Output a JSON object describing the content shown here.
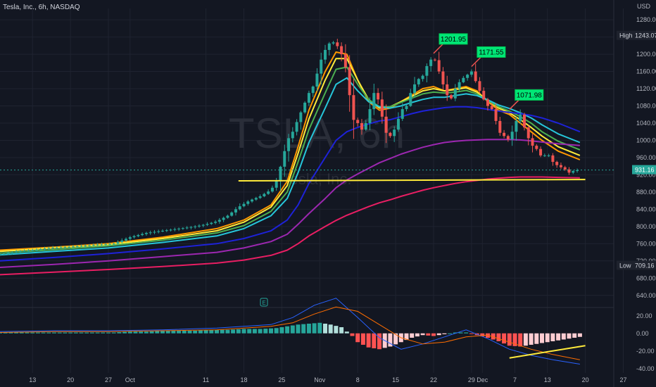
{
  "header": {
    "symbol_title": "Tesla, Inc., 6h, NASDAQ",
    "currency": "USD"
  },
  "watermark": {
    "ticker": "TSLA, 6h",
    "name": "Tesla, Inc."
  },
  "colors": {
    "bg": "#131722",
    "grid": "#1f2330",
    "up": "#26a69a",
    "down": "#ef5350",
    "ema_orange": "#ff9800",
    "ema_yellow": "#ffeb3b",
    "ema_green": "#4caf50",
    "ema_cyan": "#26c6da",
    "ema_blue": "#1e22d8",
    "ema_purple": "#9c27b0",
    "ema_pink": "#e91e63",
    "support": "#ffeb3b",
    "callout": "#00e676",
    "macd_line": "#2962ff",
    "signal_line": "#ff6d00"
  },
  "price_axis": {
    "ticks": [
      "1280.00",
      "1240.00",
      "1200.00",
      "1160.00",
      "1120.00",
      "1080.00",
      "1040.00",
      "1000.00",
      "960.00",
      "920.00",
      "880.00",
      "840.00",
      "800.00",
      "760.00",
      "720.00",
      "680.00",
      "640.00"
    ],
    "high_label": "High",
    "high_value": "1243.07",
    "low_label": "Low",
    "low_value": "709.16",
    "last_value": "931.16"
  },
  "macd_axis": {
    "ticks": [
      "20.00",
      "0.00",
      "-20.00",
      "-40.00"
    ]
  },
  "time_axis": {
    "labels": [
      {
        "text": "13",
        "t": 6
      },
      {
        "text": "20",
        "t": 13
      },
      {
        "text": "27",
        "t": 20
      },
      {
        "text": "Oct",
        "t": 24
      },
      {
        "text": "11",
        "t": 38
      },
      {
        "text": "18",
        "t": 45
      },
      {
        "text": "25",
        "t": 52
      },
      {
        "text": "Nov",
        "t": 59
      },
      {
        "text": "8",
        "t": 66
      },
      {
        "text": "15",
        "t": 73
      },
      {
        "text": "22",
        "t": 80
      },
      {
        "text": "29",
        "t": 87
      },
      {
        "text": "Dec",
        "t": 89
      },
      {
        "text": "7",
        "t": 95
      },
      {
        "text": "13",
        "t": 101
      },
      {
        "text": "20",
        "t": 108
      },
      {
        "text": "27",
        "t": 115
      }
    ]
  },
  "annotations": [
    {
      "text": "1201.95",
      "t": 80,
      "price": 1201.95
    },
    {
      "text": "1171.55",
      "t": 87,
      "price": 1171.55
    },
    {
      "text": "1071.98",
      "t": 94,
      "price": 1071.98
    }
  ],
  "chart_data": {
    "type": "line",
    "title": "Tesla, Inc., 6h, NASDAQ",
    "x_unit": "days from Sep 7",
    "ylim": [
      620,
      1290
    ],
    "close_series": {
      "t": [
        0,
        3,
        6,
        9,
        12,
        15,
        18,
        21,
        24,
        27,
        30,
        33,
        36,
        38,
        40,
        42,
        44,
        46,
        48,
        50,
        51,
        52,
        53,
        54,
        55,
        56,
        57,
        58,
        59,
        60,
        61,
        62,
        63,
        64,
        65,
        66,
        67,
        68,
        69,
        70,
        71,
        72,
        73,
        74,
        75,
        76,
        77,
        78,
        79,
        80,
        81,
        82,
        83,
        84,
        85,
        86,
        87,
        88,
        89,
        90,
        91,
        92,
        93,
        94,
        95,
        96,
        97,
        98,
        99,
        100,
        101,
        102,
        103,
        104,
        105,
        106,
        107
      ],
      "price": [
        735,
        742,
        745,
        750,
        752,
        755,
        758,
        760,
        775,
        785,
        790,
        795,
        800,
        805,
        812,
        825,
        845,
        860,
        870,
        885,
        905,
        950,
        1000,
        1020,
        1050,
        1080,
        1110,
        1130,
        1180,
        1210,
        1230,
        1225,
        1200,
        1160,
        1050,
        1040,
        1020,
        1060,
        1110,
        1090,
        1020,
        1010,
        1030,
        1070,
        1080,
        1120,
        1140,
        1150,
        1180,
        1195,
        1160,
        1120,
        1090,
        1120,
        1140,
        1150,
        1160,
        1130,
        1100,
        1080,
        1070,
        1020,
        1010,
        1000,
        1040,
        1060,
        1020,
        990,
        980,
        960,
        970,
        950,
        940,
        935,
        925,
        930,
        931.16
      ]
    },
    "moving_averages": [
      {
        "color": "#ff9800",
        "t": [
          0,
          10,
          20,
          30,
          40,
          45,
          50,
          53,
          55,
          57,
          60,
          62,
          64,
          66,
          68,
          70,
          72,
          74,
          76,
          78,
          80,
          82,
          84,
          86,
          88,
          90,
          92,
          94,
          96,
          98,
          100,
          103,
          107
        ],
        "price": [
          745,
          752,
          760,
          775,
          795,
          815,
          850,
          905,
          985,
          1070,
          1160,
          1205,
          1200,
          1140,
          1090,
          1070,
          1075,
          1090,
          1105,
          1120,
          1125,
          1115,
          1120,
          1125,
          1115,
          1090,
          1070,
          1060,
          1040,
          1020,
          1000,
          975,
          955
        ]
      },
      {
        "color": "#ffeb3b",
        "t": [
          0,
          10,
          20,
          30,
          40,
          45,
          50,
          53,
          55,
          57,
          60,
          62,
          64,
          66,
          68,
          70,
          72,
          74,
          76,
          78,
          80,
          82,
          84,
          86,
          88,
          90,
          92,
          94,
          96,
          98,
          100,
          103,
          107
        ],
        "price": [
          742,
          750,
          758,
          772,
          790,
          810,
          845,
          895,
          970,
          1050,
          1140,
          1190,
          1190,
          1140,
          1095,
          1075,
          1078,
          1090,
          1102,
          1115,
          1120,
          1115,
          1118,
          1122,
          1112,
          1092,
          1075,
          1064,
          1048,
          1030,
          1010,
          985,
          965
        ]
      },
      {
        "color": "#4caf50",
        "t": [
          0,
          10,
          20,
          30,
          40,
          45,
          50,
          53,
          55,
          57,
          60,
          62,
          64,
          66,
          68,
          70,
          72,
          74,
          76,
          78,
          80,
          82,
          84,
          86,
          88,
          90,
          92,
          94,
          96,
          98,
          100,
          103,
          107
        ],
        "price": [
          738,
          746,
          755,
          768,
          785,
          802,
          835,
          880,
          950,
          1025,
          1110,
          1165,
          1170,
          1130,
          1095,
          1078,
          1078,
          1088,
          1098,
          1108,
          1112,
          1110,
          1112,
          1116,
          1108,
          1092,
          1078,
          1068,
          1055,
          1040,
          1020,
          998,
          978
        ]
      },
      {
        "color": "#26c6da",
        "t": [
          0,
          10,
          20,
          30,
          40,
          45,
          50,
          53,
          55,
          57,
          60,
          62,
          64,
          66,
          68,
          70,
          72,
          74,
          76,
          78,
          80,
          82,
          84,
          86,
          88,
          90,
          92,
          94,
          96,
          98,
          100,
          103,
          107
        ],
        "price": [
          734,
          742,
          750,
          763,
          778,
          795,
          825,
          865,
          925,
          995,
          1075,
          1130,
          1145,
          1115,
          1090,
          1078,
          1075,
          1080,
          1088,
          1095,
          1100,
          1100,
          1104,
          1108,
          1104,
          1094,
          1082,
          1074,
          1064,
          1052,
          1036,
          1015,
          995
        ]
      },
      {
        "color": "#1e22d8",
        "t": [
          0,
          10,
          20,
          30,
          40,
          45,
          50,
          53,
          55,
          57,
          60,
          62,
          64,
          66,
          68,
          70,
          72,
          74,
          76,
          78,
          80,
          82,
          84,
          86,
          88,
          90,
          92,
          94,
          96,
          98,
          100,
          103,
          107
        ],
        "price": [
          720,
          728,
          737,
          748,
          760,
          772,
          790,
          815,
          850,
          900,
          960,
          1000,
          1020,
          1030,
          1038,
          1045,
          1048,
          1055,
          1062,
          1068,
          1072,
          1076,
          1078,
          1078,
          1076,
          1072,
          1068,
          1065,
          1062,
          1058,
          1052,
          1040,
          1020
        ]
      },
      {
        "color": "#9c27b0",
        "t": [
          0,
          10,
          20,
          30,
          40,
          45,
          50,
          53,
          55,
          57,
          60,
          62,
          64,
          66,
          68,
          70,
          72,
          74,
          76,
          78,
          80,
          82,
          84,
          86,
          88,
          90,
          92,
          94,
          96,
          98,
          100,
          103,
          107
        ],
        "price": [
          705,
          712,
          720,
          730,
          740,
          750,
          765,
          782,
          805,
          830,
          865,
          890,
          908,
          922,
          935,
          948,
          958,
          968,
          976,
          984,
          990,
          995,
          998,
          1000,
          1001,
          1002,
          1002,
          1002,
          1001,
          999,
          996,
          992,
          988
        ]
      },
      {
        "color": "#e91e63",
        "t": [
          0,
          10,
          20,
          30,
          40,
          45,
          50,
          53,
          55,
          57,
          60,
          62,
          64,
          66,
          68,
          70,
          72,
          74,
          76,
          78,
          80,
          82,
          84,
          86,
          88,
          90,
          92,
          94,
          96,
          98,
          100,
          103,
          107
        ],
        "price": [
          688,
          694,
          700,
          707,
          715,
          722,
          733,
          745,
          760,
          778,
          800,
          814,
          826,
          836,
          846,
          855,
          862,
          870,
          877,
          884,
          890,
          895,
          900,
          904,
          907,
          910,
          912,
          914,
          915,
          915,
          915,
          914,
          913
        ]
      }
    ],
    "support_line": {
      "t": [
        44,
        108
      ],
      "price": [
        906,
        909
      ]
    },
    "macd": {
      "ylim": [
        -45,
        27
      ],
      "histogram_t": [
        0,
        3,
        6,
        9,
        12,
        15,
        18,
        21,
        24,
        27,
        30,
        33,
        36,
        39,
        42,
        45,
        48,
        51,
        53,
        55,
        57,
        59,
        61,
        63,
        65,
        66,
        68,
        70,
        72,
        74,
        76,
        78,
        80,
        82,
        84,
        86,
        88,
        90,
        92,
        94,
        96,
        98,
        100,
        102,
        104,
        106,
        107
      ],
      "histogram": [
        1,
        1,
        1,
        1,
        1,
        1,
        1,
        1,
        2,
        2,
        3,
        3,
        3,
        4,
        4,
        5,
        5,
        6,
        8,
        10,
        11,
        12,
        10,
        7,
        -3,
        -10,
        -16,
        -18,
        -15,
        -10,
        -5,
        -2,
        -3,
        -1,
        1,
        1,
        -2,
        -5,
        -9,
        -14,
        -15,
        -13,
        -11,
        -9,
        -7,
        -5,
        -4
      ],
      "macd_t": [
        0,
        10,
        20,
        30,
        40,
        45,
        50,
        54,
        58,
        62,
        66,
        70,
        74,
        78,
        82,
        86,
        90,
        94,
        98,
        102,
        107
      ],
      "macd_line": [
        2,
        3,
        3,
        4,
        6,
        8,
        10,
        18,
        32,
        40,
        18,
        -5,
        -18,
        -12,
        -4,
        4,
        -6,
        -18,
        -25,
        -30,
        -35
      ],
      "signal_t": [
        0,
        10,
        20,
        30,
        40,
        45,
        50,
        54,
        58,
        62,
        66,
        70,
        74,
        78,
        82,
        86,
        90,
        94,
        98,
        102,
        107
      ],
      "signal_line": [
        1,
        2,
        2,
        3,
        4,
        6,
        8,
        12,
        22,
        30,
        25,
        10,
        -5,
        -12,
        -10,
        -4,
        -2,
        -10,
        -18,
        -24,
        -30
      ],
      "trend_line": {
        "t": [
          94,
          108
        ],
        "value": [
          -28,
          -14
        ]
      }
    }
  }
}
